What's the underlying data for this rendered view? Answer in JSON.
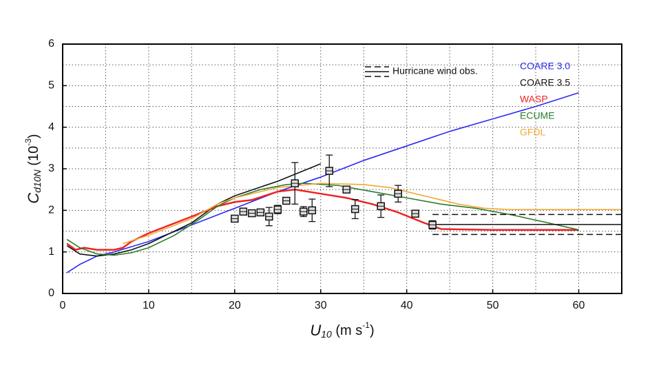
{
  "chart_data": {
    "type": "line",
    "xlabel": [
      "U",
      "10",
      " (m s",
      "-1",
      ")"
    ],
    "ylabel": [
      "C",
      "d10N",
      " (10",
      "-3",
      ")"
    ],
    "xlim": [
      0,
      65
    ],
    "ylim": [
      0,
      6
    ],
    "xticks": [
      0,
      10,
      20,
      30,
      40,
      50,
      60
    ],
    "yticks": [
      0,
      1,
      2,
      3,
      4,
      5,
      6
    ],
    "grid": true,
    "series": [
      {
        "name": "COARE 3.0",
        "color": "#2a2af0",
        "x": [
          0.5,
          2,
          4,
          6,
          10,
          15,
          19,
          20,
          25,
          30,
          35,
          40,
          45,
          50,
          55,
          60
        ],
        "values": [
          0.5,
          0.7,
          0.9,
          1.0,
          1.25,
          1.65,
          1.97,
          2.05,
          2.45,
          2.8,
          3.2,
          3.55,
          3.9,
          4.2,
          4.5,
          4.83
        ]
      },
      {
        "name": "COARE 3.5",
        "color": "#111111",
        "x": [
          0.5,
          2,
          4,
          6,
          8,
          10,
          15,
          18,
          20,
          25,
          30
        ],
        "values": [
          1.15,
          0.95,
          0.9,
          0.95,
          1.05,
          1.2,
          1.7,
          2.15,
          2.35,
          2.7,
          3.12
        ]
      },
      {
        "name": "WASP",
        "color": "#ee2222",
        "x": [
          0.5,
          1.5,
          2.5,
          4,
          6,
          7,
          8,
          10,
          15,
          18,
          20,
          22,
          25,
          27,
          30,
          33,
          36,
          39,
          42,
          44,
          50,
          60
        ],
        "values": [
          1.2,
          1.05,
          1.1,
          1.05,
          1.05,
          1.1,
          1.25,
          1.45,
          1.85,
          2.1,
          2.2,
          2.25,
          2.45,
          2.5,
          2.4,
          2.3,
          2.15,
          1.95,
          1.7,
          1.55,
          1.53,
          1.53
        ]
      },
      {
        "name": "ECUME",
        "color": "#2a7a2a",
        "x": [
          0.5,
          2,
          4,
          6,
          8,
          10,
          13,
          16,
          18,
          20,
          23,
          26,
          28,
          32,
          36,
          40,
          44,
          48,
          52,
          56,
          60
        ],
        "values": [
          1.3,
          1.1,
          0.95,
          0.92,
          0.98,
          1.1,
          1.4,
          1.8,
          2.1,
          2.3,
          2.5,
          2.62,
          2.65,
          2.6,
          2.45,
          2.3,
          2.15,
          2.05,
          1.9,
          1.72,
          1.53
        ]
      },
      {
        "name": "GFDL",
        "color": "#f0a830",
        "x": [
          7,
          10,
          15,
          18,
          20,
          25,
          30,
          35,
          38,
          40,
          43,
          46,
          49,
          52,
          65
        ],
        "values": [
          1.2,
          1.4,
          1.8,
          2.15,
          2.3,
          2.55,
          2.65,
          2.62,
          2.55,
          2.45,
          2.3,
          2.15,
          2.05,
          2.02,
          2.02
        ]
      }
    ],
    "observations": {
      "name": "Hurricane wind obs.",
      "x": [
        20,
        21,
        22,
        23,
        24,
        25,
        26,
        27,
        28,
        29,
        31,
        33,
        34,
        37,
        39,
        41,
        43
      ],
      "values": [
        1.8,
        1.97,
        1.93,
        1.95,
        1.85,
        2.02,
        2.23,
        2.65,
        1.97,
        2.0,
        2.95,
        2.5,
        2.03,
        2.1,
        2.4,
        1.92,
        1.65
      ],
      "errors": [
        0.05,
        0.05,
        0.05,
        0.05,
        0.22,
        0.1,
        0.05,
        0.5,
        0.12,
        0.27,
        0.38,
        0.07,
        0.23,
        0.27,
        0.2,
        0.05,
        0.1
      ],
      "range_x": [
        43,
        65
      ],
      "mean": 1.66,
      "low": 1.42,
      "high": 1.9
    }
  }
}
